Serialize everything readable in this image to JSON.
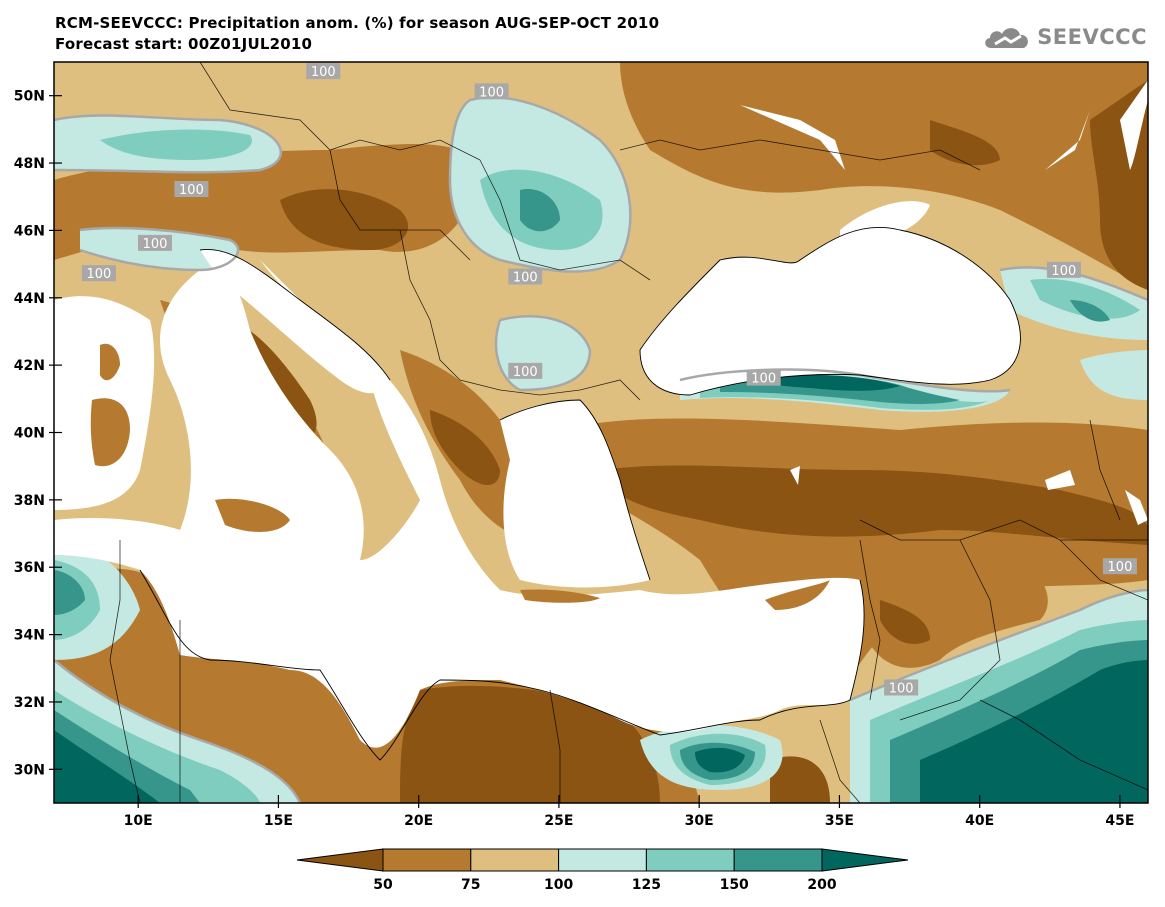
{
  "header": {
    "title_line1": "RCM-SEEVCCC: Precipitation anom. (%) for season AUG-SEP-OCT 2010",
    "title_line2": "Forecast start: 00Z01JUL2010"
  },
  "logo": {
    "text": "SEEVCCC",
    "icon": "cloud-icon",
    "color": "#8a8a8a"
  },
  "map": {
    "lon_range": [
      7,
      46
    ],
    "lat_range": [
      29,
      51
    ],
    "lat_ticks": [
      "50N",
      "48N",
      "46N",
      "44N",
      "42N",
      "40N",
      "38N",
      "36N",
      "34N",
      "32N",
      "30N"
    ],
    "lat_tick_values": [
      50,
      48,
      46,
      44,
      42,
      40,
      38,
      36,
      34,
      32,
      30
    ],
    "lon_ticks": [
      "10E",
      "15E",
      "20E",
      "25E",
      "30E",
      "35E",
      "40E",
      "45E"
    ],
    "lon_tick_values": [
      10,
      15,
      20,
      25,
      30,
      35,
      40,
      45
    ],
    "contour_labels": [
      {
        "text": "100",
        "lon": 16.6,
        "lat": 50.7
      },
      {
        "text": "100",
        "lon": 22.6,
        "lat": 50.1
      },
      {
        "text": "100",
        "lon": 11.9,
        "lat": 47.2
      },
      {
        "text": "100",
        "lon": 10.6,
        "lat": 45.6
      },
      {
        "text": "100",
        "lon": 8.6,
        "lat": 44.7
      },
      {
        "text": "100",
        "lon": 23.8,
        "lat": 44.6
      },
      {
        "text": "100",
        "lon": 23.8,
        "lat": 41.8
      },
      {
        "text": "100",
        "lon": 32.3,
        "lat": 41.6
      },
      {
        "text": "100",
        "lon": 43.0,
        "lat": 44.8
      },
      {
        "text": "100",
        "lon": 45.0,
        "lat": 36.0
      },
      {
        "text": "100",
        "lon": 37.2,
        "lat": 32.4
      }
    ],
    "colors": {
      "lt50": "#8b5412",
      "50_75": "#b57a30",
      "75_100": "#dfbf7f",
      "100_125": "#c4e9e2",
      "125_150": "#7fcdbe",
      "150_200": "#37968b",
      "gt200": "#00665e",
      "sea": "#ffffff",
      "contour_line": "#a8a8a8"
    }
  },
  "colorbar": {
    "labels": [
      "50",
      "75",
      "100",
      "125",
      "150",
      "200"
    ],
    "colors": [
      "#8b5412",
      "#b57a30",
      "#dfbf7f",
      "#c4e9e2",
      "#7fcdbe",
      "#37968b",
      "#00665e"
    ]
  }
}
